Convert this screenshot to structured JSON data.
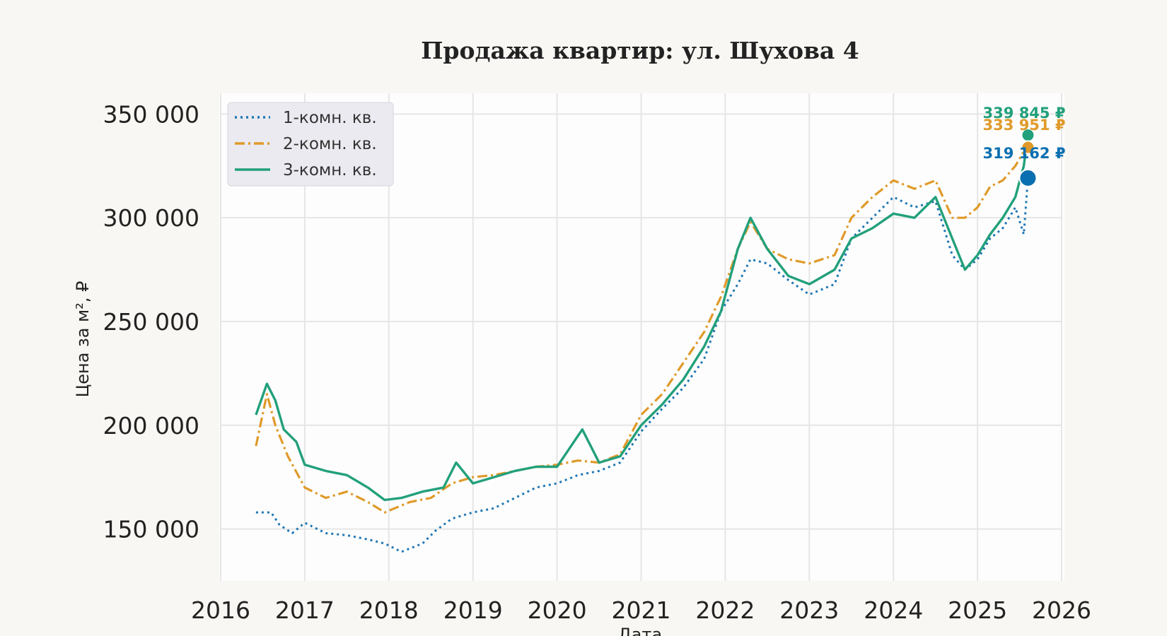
{
  "chart_data": {
    "type": "line",
    "title": "Продажа квартир: ул. Шухова 4",
    "xlabel": "Дата",
    "ylabel": "Цена за м², ₽",
    "xlim": [
      2016,
      2026
    ],
    "ylim": [
      125000,
      360000
    ],
    "x_ticks": [
      "2016",
      "2017",
      "2018",
      "2019",
      "2020",
      "2021",
      "2022",
      "2023",
      "2024",
      "2025",
      "2026"
    ],
    "y_ticks": [
      "150 000",
      "200 000",
      "250 000",
      "300 000",
      "350 000"
    ],
    "y_tick_values": [
      150000,
      200000,
      250000,
      300000,
      350000
    ],
    "grid": true,
    "legend_position": "top-left",
    "colors": {
      "1k": "#1f77b4",
      "2k": "#e09a2a",
      "3k": "#22a07b",
      "end_1k": "#0a6fb0"
    },
    "series": [
      {
        "name": "1-комн. кв.",
        "style": "dotted",
        "points": [
          [
            2016.42,
            158000
          ],
          [
            2016.6,
            158000
          ],
          [
            2016.7,
            152000
          ],
          [
            2016.85,
            148000
          ],
          [
            2017.0,
            153000
          ],
          [
            2017.25,
            148000
          ],
          [
            2017.5,
            147000
          ],
          [
            2017.75,
            145000
          ],
          [
            2017.95,
            143000
          ],
          [
            2018.15,
            139000
          ],
          [
            2018.4,
            143000
          ],
          [
            2018.55,
            149000
          ],
          [
            2018.75,
            155000
          ],
          [
            2019.0,
            158000
          ],
          [
            2019.25,
            160000
          ],
          [
            2019.5,
            165000
          ],
          [
            2019.75,
            170000
          ],
          [
            2020.0,
            172000
          ],
          [
            2020.25,
            176000
          ],
          [
            2020.5,
            178000
          ],
          [
            2020.75,
            182000
          ],
          [
            2021.0,
            197000
          ],
          [
            2021.25,
            208000
          ],
          [
            2021.5,
            218000
          ],
          [
            2021.75,
            232000
          ],
          [
            2021.95,
            255000
          ],
          [
            2022.15,
            268000
          ],
          [
            2022.3,
            280000
          ],
          [
            2022.5,
            278000
          ],
          [
            2022.75,
            270000
          ],
          [
            2023.0,
            263000
          ],
          [
            2023.3,
            268000
          ],
          [
            2023.5,
            290000
          ],
          [
            2023.75,
            300000
          ],
          [
            2024.0,
            310000
          ],
          [
            2024.25,
            305000
          ],
          [
            2024.5,
            308000
          ],
          [
            2024.7,
            282000
          ],
          [
            2024.85,
            275000
          ],
          [
            2025.0,
            280000
          ],
          [
            2025.15,
            290000
          ],
          [
            2025.3,
            295000
          ],
          [
            2025.45,
            305000
          ],
          [
            2025.55,
            292000
          ],
          [
            2025.6,
            319162
          ]
        ]
      },
      {
        "name": "2-комн. кв.",
        "style": "dashdot",
        "points": [
          [
            2016.42,
            190000
          ],
          [
            2016.55,
            215000
          ],
          [
            2016.65,
            200000
          ],
          [
            2016.8,
            185000
          ],
          [
            2017.0,
            170000
          ],
          [
            2017.25,
            165000
          ],
          [
            2017.5,
            168000
          ],
          [
            2017.75,
            163000
          ],
          [
            2017.95,
            158000
          ],
          [
            2018.25,
            163000
          ],
          [
            2018.5,
            165000
          ],
          [
            2018.75,
            172000
          ],
          [
            2019.0,
            175000
          ],
          [
            2019.25,
            176000
          ],
          [
            2019.5,
            178000
          ],
          [
            2019.75,
            180000
          ],
          [
            2020.0,
            181000
          ],
          [
            2020.25,
            183000
          ],
          [
            2020.5,
            182000
          ],
          [
            2020.75,
            186000
          ],
          [
            2021.0,
            205000
          ],
          [
            2021.25,
            215000
          ],
          [
            2021.5,
            230000
          ],
          [
            2021.75,
            245000
          ],
          [
            2021.95,
            262000
          ],
          [
            2022.15,
            285000
          ],
          [
            2022.3,
            298000
          ],
          [
            2022.5,
            285000
          ],
          [
            2022.75,
            280000
          ],
          [
            2023.0,
            278000
          ],
          [
            2023.3,
            282000
          ],
          [
            2023.5,
            300000
          ],
          [
            2023.75,
            310000
          ],
          [
            2024.0,
            318000
          ],
          [
            2024.25,
            314000
          ],
          [
            2024.5,
            318000
          ],
          [
            2024.7,
            300000
          ],
          [
            2024.85,
            300000
          ],
          [
            2025.0,
            305000
          ],
          [
            2025.15,
            315000
          ],
          [
            2025.3,
            318000
          ],
          [
            2025.45,
            325000
          ],
          [
            2025.55,
            332000
          ],
          [
            2025.6,
            333951
          ]
        ]
      },
      {
        "name": "3-комн. кв.",
        "style": "solid",
        "points": [
          [
            2016.42,
            205000
          ],
          [
            2016.55,
            220000
          ],
          [
            2016.65,
            212000
          ],
          [
            2016.75,
            198000
          ],
          [
            2016.9,
            192000
          ],
          [
            2017.0,
            181000
          ],
          [
            2017.25,
            178000
          ],
          [
            2017.5,
            176000
          ],
          [
            2017.75,
            170000
          ],
          [
            2017.95,
            164000
          ],
          [
            2018.15,
            165000
          ],
          [
            2018.4,
            168000
          ],
          [
            2018.65,
            170000
          ],
          [
            2018.8,
            182000
          ],
          [
            2019.0,
            172000
          ],
          [
            2019.25,
            175000
          ],
          [
            2019.5,
            178000
          ],
          [
            2019.75,
            180000
          ],
          [
            2020.0,
            180000
          ],
          [
            2020.3,
            198000
          ],
          [
            2020.5,
            182000
          ],
          [
            2020.75,
            185000
          ],
          [
            2021.0,
            200000
          ],
          [
            2021.25,
            210000
          ],
          [
            2021.5,
            222000
          ],
          [
            2021.75,
            238000
          ],
          [
            2021.95,
            255000
          ],
          [
            2022.15,
            285000
          ],
          [
            2022.3,
            300000
          ],
          [
            2022.5,
            285000
          ],
          [
            2022.75,
            272000
          ],
          [
            2023.0,
            268000
          ],
          [
            2023.3,
            275000
          ],
          [
            2023.5,
            290000
          ],
          [
            2023.75,
            295000
          ],
          [
            2024.0,
            302000
          ],
          [
            2024.25,
            300000
          ],
          [
            2024.5,
            310000
          ],
          [
            2024.7,
            290000
          ],
          [
            2024.85,
            275000
          ],
          [
            2025.0,
            282000
          ],
          [
            2025.15,
            292000
          ],
          [
            2025.3,
            300000
          ],
          [
            2025.45,
            310000
          ],
          [
            2025.55,
            325000
          ],
          [
            2025.6,
            339845
          ]
        ]
      }
    ],
    "end_labels": [
      {
        "series": "3-комн. кв.",
        "text": "339 845 ₽",
        "value": 339845
      },
      {
        "series": "2-комн. кв.",
        "text": "333 951 ₽",
        "value": 333951
      },
      {
        "series": "1-комн. кв.",
        "text": "319 162 ₽",
        "value": 319162
      }
    ]
  }
}
